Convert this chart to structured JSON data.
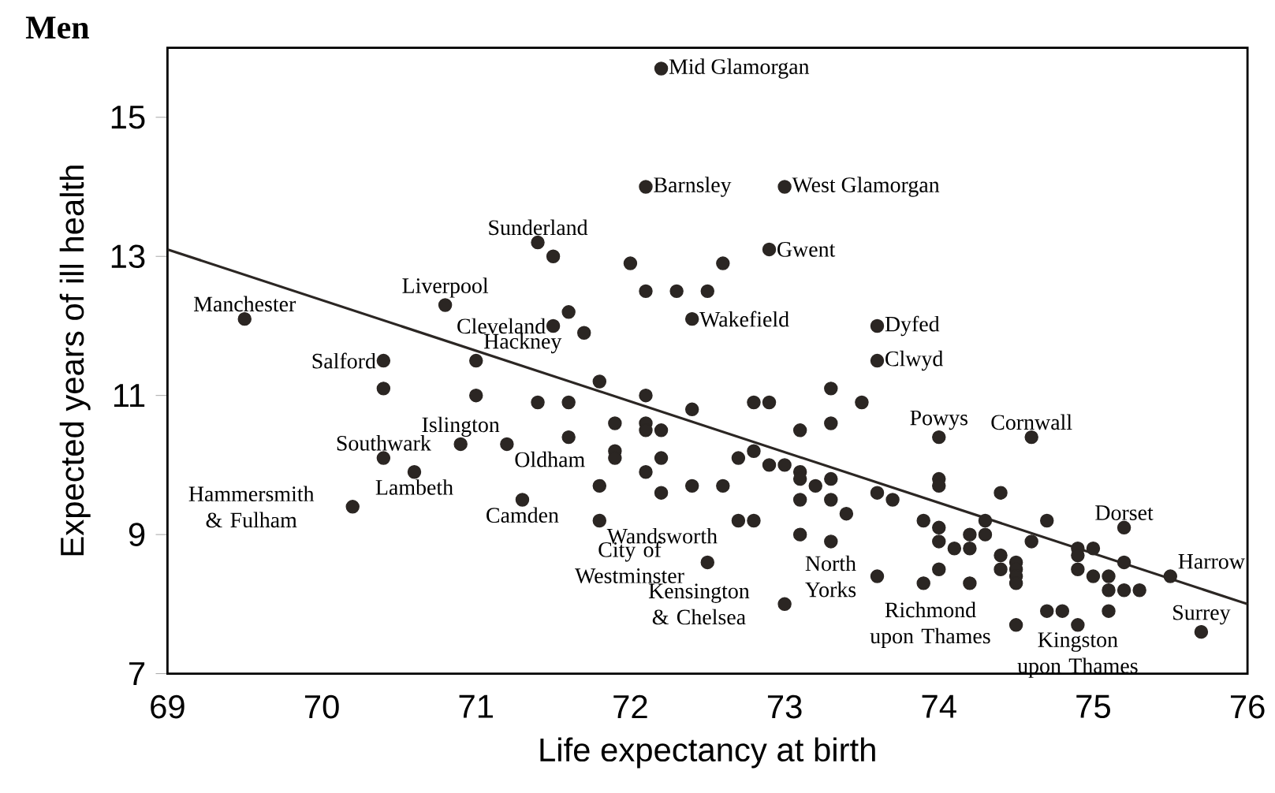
{
  "chart_data": {
    "type": "scatter",
    "title": "Men",
    "xlabel": "Life expectancy at birth",
    "ylabel": "Expected years of ill health",
    "xlim": [
      69,
      76
    ],
    "ylim": [
      7,
      16
    ],
    "xticks": [
      69,
      70,
      71,
      72,
      73,
      74,
      75,
      76
    ],
    "yticks": [
      7,
      9,
      11,
      13,
      15
    ],
    "marker": "circle",
    "series": [
      {
        "type": "scatter",
        "color": "#2b2623",
        "x": [
          69.5,
          70.4,
          70.4,
          70.4,
          70.2,
          70.6,
          70.8,
          70.9,
          71.0,
          71.0,
          71.2,
          71.3,
          71.4,
          71.5,
          71.5,
          71.6,
          71.7,
          71.4,
          71.6,
          71.6,
          71.8,
          71.9,
          71.9,
          71.9,
          71.8,
          71.8,
          72.0,
          72.1,
          72.2,
          72.1,
          72.3,
          72.5,
          72.6,
          72.4,
          72.1,
          72.1,
          72.1,
          72.2,
          72.1,
          72.2,
          72.2,
          72.4,
          72.4,
          72.6,
          72.5,
          72.7,
          72.7,
          72.8,
          72.8,
          72.8,
          72.9,
          72.9,
          73.0,
          72.9,
          73.0,
          73.0,
          73.1,
          73.1,
          73.1,
          73.1,
          73.1,
          73.2,
          73.3,
          73.3,
          73.3,
          73.3,
          73.3,
          73.4,
          73.5,
          73.6,
          73.6,
          73.6,
          73.7,
          73.6,
          73.9,
          73.9,
          74.0,
          74.0,
          74.0,
          74.0,
          74.0,
          74.0,
          74.1,
          74.2,
          74.2,
          74.2,
          74.3,
          74.3,
          74.4,
          74.4,
          74.4,
          74.5,
          74.5,
          74.5,
          74.5,
          74.5,
          74.6,
          74.6,
          74.7,
          74.7,
          74.8,
          74.9,
          74.9,
          74.9,
          74.9,
          75.0,
          75.0,
          75.1,
          75.1,
          75.1,
          75.2,
          75.2,
          75.2,
          75.3,
          75.5,
          75.7
        ],
        "values": [
          12.1,
          11.5,
          11.1,
          10.1,
          9.4,
          9.9,
          12.3,
          10.3,
          11.5,
          11.0,
          10.3,
          9.5,
          13.2,
          13.0,
          12.0,
          12.2,
          11.9,
          10.9,
          10.9,
          10.4,
          11.2,
          10.6,
          10.2,
          10.1,
          9.7,
          9.2,
          12.9,
          14.0,
          15.7,
          12.5,
          12.5,
          12.5,
          12.9,
          12.1,
          11.0,
          10.6,
          10.5,
          10.5,
          9.9,
          10.1,
          9.6,
          10.8,
          9.7,
          9.7,
          8.6,
          10.1,
          9.2,
          9.2,
          10.2,
          10.9,
          10.9,
          10.0,
          10.0,
          13.1,
          14.0,
          8.0,
          10.5,
          9.9,
          9.8,
          9.5,
          9.0,
          9.7,
          11.1,
          10.6,
          9.8,
          9.5,
          8.9,
          9.3,
          10.9,
          12.0,
          11.5,
          9.6,
          9.5,
          8.4,
          9.2,
          8.3,
          10.4,
          9.8,
          9.7,
          9.1,
          8.9,
          8.5,
          8.8,
          9.0,
          8.8,
          8.3,
          9.2,
          9.0,
          9.6,
          8.7,
          8.5,
          7.7,
          8.6,
          8.5,
          8.4,
          8.3,
          10.4,
          8.9,
          9.2,
          7.9,
          7.9,
          8.8,
          8.7,
          8.5,
          7.7,
          8.8,
          8.4,
          8.4,
          8.2,
          7.9,
          9.1,
          8.6,
          8.2,
          8.2,
          8.4,
          7.6
        ]
      },
      {
        "type": "line",
        "marker": "none",
        "color": "#2b2623",
        "x": [
          69,
          76
        ],
        "values": [
          13.1,
          8.0
        ]
      }
    ],
    "annotations": [
      {
        "text": "Manchester",
        "x": 69.5,
        "y": 12.1
      },
      {
        "text": "Salford",
        "x": 70.4,
        "y": 11.5
      },
      {
        "text": "Southwark",
        "x": 70.4,
        "y": 10.1
      },
      {
        "text": "Hammersmith & Fulham",
        "x": 70.2,
        "y": 9.4
      },
      {
        "text": "Lambeth",
        "x": 70.6,
        "y": 9.9
      },
      {
        "text": "Liverpool",
        "x": 70.8,
        "y": 12.3
      },
      {
        "text": "Islington",
        "x": 70.9,
        "y": 10.3
      },
      {
        "text": "Hackney",
        "x": 71.0,
        "y": 11.5
      },
      {
        "text": "Oldham",
        "x": 71.2,
        "y": 10.3
      },
      {
        "text": "Camden",
        "x": 71.3,
        "y": 9.5
      },
      {
        "text": "Sunderland",
        "x": 71.4,
        "y": 13.2
      },
      {
        "text": "Cleveland",
        "x": 71.5,
        "y": 12.0
      },
      {
        "text": "Wandsworth",
        "x": 71.8,
        "y": 9.2
      },
      {
        "text": "Mid Glamorgan",
        "x": 72.2,
        "y": 15.7
      },
      {
        "text": "Barnsley",
        "x": 72.1,
        "y": 14.0
      },
      {
        "text": "West Glamorgan",
        "x": 73.0,
        "y": 14.0
      },
      {
        "text": "Gwent",
        "x": 72.9,
        "y": 13.1
      },
      {
        "text": "Wakefield",
        "x": 72.4,
        "y": 12.1
      },
      {
        "text": "Dyfed",
        "x": 73.6,
        "y": 12.0
      },
      {
        "text": "Clwyd",
        "x": 73.6,
        "y": 11.5
      },
      {
        "text": "City of Westminster",
        "x": 72.5,
        "y": 8.6
      },
      {
        "text": "Kensington & Chelsea",
        "x": 73.0,
        "y": 8.0
      },
      {
        "text": "North Yorks",
        "x": 73.6,
        "y": 8.4
      },
      {
        "text": "Powys",
        "x": 74.0,
        "y": 10.4
      },
      {
        "text": "Cornwall",
        "x": 74.6,
        "y": 10.4
      },
      {
        "text": "Richmond upon Thames",
        "x": 74.5,
        "y": 7.7
      },
      {
        "text": "Kingston upon Thames",
        "x": 74.9,
        "y": 7.7
      },
      {
        "text": "Dorset",
        "x": 75.2,
        "y": 9.1
      },
      {
        "text": "Harrow",
        "x": 75.5,
        "y": 8.4
      },
      {
        "text": "Surrey",
        "x": 75.7,
        "y": 7.6
      }
    ]
  }
}
